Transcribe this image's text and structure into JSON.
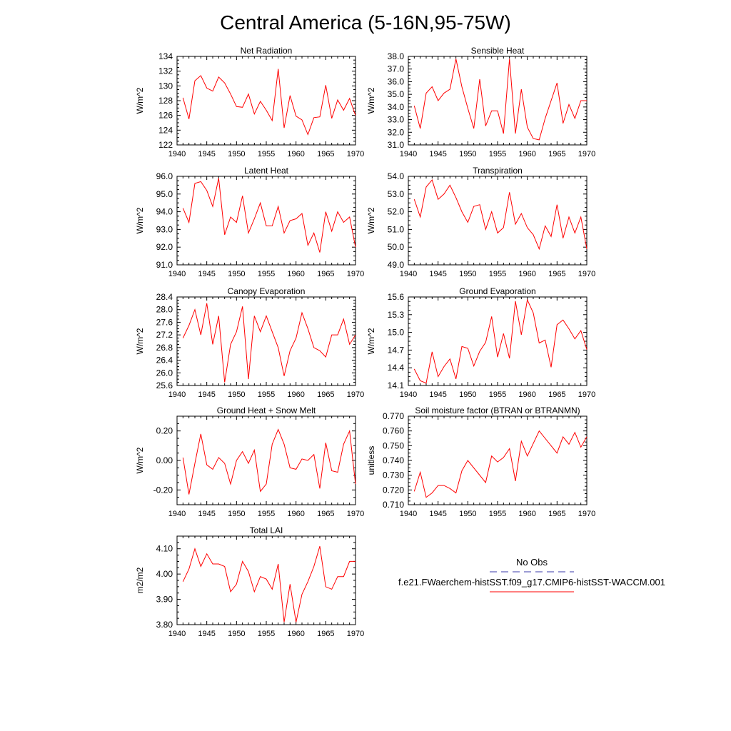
{
  "page_title": "Central America (5-16N,95-75W)",
  "legend": {
    "obs_label": "No Obs",
    "model_label": "f.e21.FWaerchem-histSST.f09_g17.CMIP6-histSST-WACCM.001",
    "obs_color": "#3a3aa8",
    "model_color": "#ff0000"
  },
  "chart_data": [
    {
      "type": "line",
      "title": "Net Radiation",
      "xlabel": "",
      "ylabel": "W/m^2",
      "xlim": [
        1940,
        1970
      ],
      "ylim": [
        122,
        134
      ],
      "xticks": [
        1940,
        1945,
        1950,
        1955,
        1960,
        1965,
        1970
      ],
      "xtick_labels": [
        "1940",
        "1945",
        "1950",
        "1955",
        "1960",
        "1965",
        "1970"
      ],
      "yticks": [
        122,
        124,
        126,
        128,
        130,
        132,
        134
      ],
      "ytick_labels": [
        "122",
        "124",
        "126",
        "128",
        "130",
        "132",
        "134"
      ],
      "series": [
        {
          "color": "#ff0000",
          "x": [
            1941,
            1942,
            1943,
            1944,
            1945,
            1946,
            1947,
            1948,
            1949,
            1950,
            1951,
            1952,
            1953,
            1954,
            1955,
            1956,
            1957,
            1958,
            1959,
            1960,
            1961,
            1962,
            1963,
            1964,
            1965,
            1966,
            1967,
            1968,
            1969,
            1970
          ],
          "y": [
            128.4,
            125.5,
            130.7,
            131.4,
            129.7,
            129.3,
            131.2,
            130.4,
            128.9,
            127.2,
            127.1,
            128.9,
            126.2,
            127.9,
            126.7,
            125.3,
            132.3,
            124.3,
            128.7,
            125.9,
            125.4,
            123.4,
            125.7,
            125.8,
            130.1,
            125.6,
            128.1,
            126.7,
            128.3,
            126.0
          ]
        }
      ]
    },
    {
      "type": "line",
      "title": "Sensible Heat",
      "xlabel": "",
      "ylabel": "W/m^2",
      "xlim": [
        1940,
        1970
      ],
      "ylim": [
        31.0,
        38.0
      ],
      "xticks": [
        1940,
        1945,
        1950,
        1955,
        1960,
        1965,
        1970
      ],
      "xtick_labels": [
        "1940",
        "1945",
        "1950",
        "1955",
        "1960",
        "1965",
        "1970"
      ],
      "yticks": [
        31,
        32,
        33,
        34,
        35,
        36,
        37,
        38
      ],
      "ytick_labels": [
        "31.0",
        "32.0",
        "33.0",
        "34.0",
        "35.0",
        "36.0",
        "37.0",
        "38.0"
      ],
      "series": [
        {
          "color": "#ff0000",
          "x": [
            1941,
            1942,
            1943,
            1944,
            1945,
            1946,
            1947,
            1948,
            1949,
            1950,
            1951,
            1952,
            1953,
            1954,
            1955,
            1956,
            1957,
            1958,
            1959,
            1960,
            1961,
            1962,
            1963,
            1964,
            1965,
            1966,
            1967,
            1968,
            1969,
            1970
          ],
          "y": [
            34.1,
            32.3,
            35.1,
            35.6,
            34.5,
            35.1,
            35.4,
            37.8,
            35.6,
            33.9,
            32.3,
            36.2,
            32.5,
            33.7,
            33.7,
            31.9,
            37.8,
            31.9,
            35.4,
            32.4,
            31.5,
            31.4,
            33.1,
            34.5,
            35.9,
            32.7,
            34.2,
            33.1,
            34.5,
            34.5
          ]
        }
      ]
    },
    {
      "type": "line",
      "title": "Latent Heat",
      "xlabel": "",
      "ylabel": "W/m^2",
      "xlim": [
        1940,
        1970
      ],
      "ylim": [
        91.0,
        96.0
      ],
      "xticks": [
        1940,
        1945,
        1950,
        1955,
        1960,
        1965,
        1970
      ],
      "xtick_labels": [
        "1940",
        "1945",
        "1950",
        "1955",
        "1960",
        "1965",
        "1970"
      ],
      "yticks": [
        91,
        92,
        93,
        94,
        95,
        96
      ],
      "ytick_labels": [
        "91.0",
        "92.0",
        "93.0",
        "94.0",
        "95.0",
        "96.0"
      ],
      "series": [
        {
          "color": "#ff0000",
          "x": [
            1941,
            1942,
            1943,
            1944,
            1945,
            1946,
            1947,
            1948,
            1949,
            1950,
            1951,
            1952,
            1953,
            1954,
            1955,
            1956,
            1957,
            1958,
            1959,
            1960,
            1961,
            1962,
            1963,
            1964,
            1965,
            1966,
            1967,
            1968,
            1969,
            1970
          ],
          "y": [
            94.2,
            93.4,
            95.6,
            95.7,
            95.2,
            94.3,
            95.9,
            92.7,
            93.7,
            93.4,
            94.9,
            92.8,
            93.6,
            94.5,
            93.2,
            93.2,
            94.3,
            92.8,
            93.5,
            93.6,
            93.9,
            92.1,
            92.8,
            91.7,
            94.0,
            92.9,
            94.0,
            93.4,
            93.7,
            92.0
          ]
        }
      ]
    },
    {
      "type": "line",
      "title": "Transpiration",
      "xlabel": "",
      "ylabel": "W/m^2",
      "xlim": [
        1940,
        1970
      ],
      "ylim": [
        49.0,
        54.0
      ],
      "xticks": [
        1940,
        1945,
        1950,
        1955,
        1960,
        1965,
        1970
      ],
      "xtick_labels": [
        "1940",
        "1945",
        "1950",
        "1955",
        "1960",
        "1965",
        "1970"
      ],
      "yticks": [
        49,
        50,
        51,
        52,
        53,
        54
      ],
      "ytick_labels": [
        "49.0",
        "50.0",
        "51.0",
        "52.0",
        "53.0",
        "54.0"
      ],
      "series": [
        {
          "color": "#ff0000",
          "x": [
            1941,
            1942,
            1943,
            1944,
            1945,
            1946,
            1947,
            1948,
            1949,
            1950,
            1951,
            1952,
            1953,
            1954,
            1955,
            1956,
            1957,
            1958,
            1959,
            1960,
            1961,
            1962,
            1963,
            1964,
            1965,
            1966,
            1967,
            1968,
            1969,
            1970
          ],
          "y": [
            52.7,
            51.7,
            53.4,
            53.8,
            52.7,
            53.0,
            53.5,
            52.8,
            52.0,
            51.4,
            52.3,
            52.4,
            51.0,
            52.0,
            50.8,
            51.1,
            53.1,
            51.3,
            51.9,
            51.1,
            50.7,
            49.9,
            51.2,
            50.6,
            52.4,
            50.5,
            51.7,
            50.8,
            51.7,
            49.9
          ]
        }
      ]
    },
    {
      "type": "line",
      "title": "Canopy Evaporation",
      "xlabel": "",
      "ylabel": "W/m^2",
      "xlim": [
        1940,
        1970
      ],
      "ylim": [
        25.6,
        28.4
      ],
      "xticks": [
        1940,
        1945,
        1950,
        1955,
        1960,
        1965,
        1970
      ],
      "xtick_labels": [
        "1940",
        "1945",
        "1950",
        "1955",
        "1960",
        "1965",
        "1970"
      ],
      "yticks": [
        25.6,
        26.0,
        26.4,
        26.8,
        27.2,
        27.6,
        28.0,
        28.4
      ],
      "ytick_labels": [
        "25.6",
        "26.0",
        "26.4",
        "26.8",
        "27.2",
        "27.6",
        "28.0",
        "28.4"
      ],
      "series": [
        {
          "color": "#ff0000",
          "x": [
            1941,
            1942,
            1943,
            1944,
            1945,
            1946,
            1947,
            1948,
            1949,
            1950,
            1951,
            1952,
            1953,
            1954,
            1955,
            1956,
            1957,
            1958,
            1959,
            1960,
            1961,
            1962,
            1963,
            1964,
            1965,
            1966,
            1967,
            1968,
            1969,
            1970
          ],
          "y": [
            27.1,
            27.5,
            28.0,
            27.2,
            28.2,
            26.9,
            27.8,
            25.7,
            26.9,
            27.3,
            28.1,
            25.8,
            27.8,
            27.3,
            27.8,
            27.3,
            26.8,
            25.9,
            26.7,
            27.1,
            27.9,
            27.4,
            26.8,
            26.7,
            26.5,
            27.2,
            27.2,
            27.7,
            26.9,
            27.2
          ]
        }
      ]
    },
    {
      "type": "line",
      "title": "Ground Evaporation",
      "xlabel": "",
      "ylabel": "W/m^2",
      "xlim": [
        1940,
        1970
      ],
      "ylim": [
        14.1,
        15.6
      ],
      "xticks": [
        1940,
        1945,
        1950,
        1955,
        1960,
        1965,
        1970
      ],
      "xtick_labels": [
        "1940",
        "1945",
        "1950",
        "1955",
        "1960",
        "1965",
        "1970"
      ],
      "yticks": [
        14.1,
        14.4,
        14.7,
        15.0,
        15.3,
        15.6
      ],
      "ytick_labels": [
        "14.1",
        "14.4",
        "14.7",
        "15.0",
        "15.3",
        "15.6"
      ],
      "series": [
        {
          "color": "#ff0000",
          "x": [
            1941,
            1942,
            1943,
            1944,
            1945,
            1946,
            1947,
            1948,
            1949,
            1950,
            1951,
            1952,
            1953,
            1954,
            1955,
            1956,
            1957,
            1958,
            1959,
            1960,
            1961,
            1962,
            1963,
            1964,
            1965,
            1966,
            1967,
            1968,
            1969,
            1970
          ],
          "y": [
            14.38,
            14.18,
            14.14,
            14.67,
            14.25,
            14.42,
            14.55,
            14.21,
            14.76,
            14.73,
            14.43,
            14.68,
            14.83,
            15.27,
            14.58,
            14.98,
            14.56,
            15.53,
            14.96,
            15.55,
            15.33,
            14.82,
            14.87,
            14.41,
            15.13,
            15.21,
            15.06,
            14.89,
            15.03,
            14.71
          ]
        }
      ]
    },
    {
      "type": "line",
      "title": "Ground Heat + Snow Melt",
      "xlabel": "",
      "ylabel": "W/m^2",
      "xlim": [
        1940,
        1970
      ],
      "ylim": [
        -0.3,
        0.3
      ],
      "xticks": [
        1940,
        1945,
        1950,
        1955,
        1960,
        1965,
        1970
      ],
      "xtick_labels": [
        "1940",
        "1945",
        "1950",
        "1955",
        "1960",
        "1965",
        "1970"
      ],
      "yticks": [
        -0.2,
        0.0,
        0.2
      ],
      "ytick_labels": [
        "-0.20",
        "0.00",
        "0.20"
      ],
      "series": [
        {
          "color": "#ff0000",
          "x": [
            1941,
            1942,
            1943,
            1944,
            1945,
            1946,
            1947,
            1948,
            1949,
            1950,
            1951,
            1952,
            1953,
            1954,
            1955,
            1956,
            1957,
            1958,
            1959,
            1960,
            1961,
            1962,
            1963,
            1964,
            1965,
            1966,
            1967,
            1968,
            1969,
            1970
          ],
          "y": [
            0.02,
            -0.23,
            -0.02,
            0.18,
            -0.03,
            -0.06,
            0.02,
            -0.02,
            -0.16,
            0.0,
            0.06,
            -0.02,
            0.07,
            -0.21,
            -0.16,
            0.11,
            0.21,
            0.11,
            -0.05,
            -0.06,
            0.01,
            0.0,
            0.04,
            -0.19,
            0.12,
            -0.07,
            -0.08,
            0.11,
            0.2,
            -0.16
          ]
        }
      ]
    },
    {
      "type": "line",
      "title": "Soil moisture factor (BTRAN or BTRANMN)",
      "xlabel": "",
      "ylabel": "unitless",
      "xlim": [
        1940,
        1970
      ],
      "ylim": [
        0.71,
        0.77
      ],
      "xticks": [
        1940,
        1945,
        1950,
        1955,
        1960,
        1965,
        1970
      ],
      "xtick_labels": [
        "1940",
        "1945",
        "1950",
        "1955",
        "1960",
        "1965",
        "1970"
      ],
      "yticks": [
        0.71,
        0.72,
        0.73,
        0.74,
        0.75,
        0.76,
        0.77
      ],
      "ytick_labels": [
        "0.710",
        "0.720",
        "0.730",
        "0.740",
        "0.750",
        "0.760",
        "0.770"
      ],
      "series": [
        {
          "color": "#ff0000",
          "x": [
            1941,
            1942,
            1943,
            1944,
            1945,
            1946,
            1947,
            1948,
            1949,
            1950,
            1953,
            1954,
            1955,
            1956,
            1957,
            1958,
            1959,
            1960,
            1962,
            1965,
            1966,
            1967,
            1968,
            1969,
            1970
          ],
          "y": [
            0.719,
            0.732,
            0.715,
            0.718,
            0.723,
            0.723,
            0.721,
            0.718,
            0.733,
            0.74,
            0.725,
            0.743,
            0.739,
            0.742,
            0.748,
            0.726,
            0.753,
            0.743,
            0.76,
            0.745,
            0.756,
            0.751,
            0.759,
            0.749,
            0.756
          ]
        }
      ]
    },
    {
      "type": "line",
      "title": "Total LAI",
      "xlabel": "",
      "ylabel": "m2/m2",
      "xlim": [
        1940,
        1970
      ],
      "ylim": [
        3.8,
        4.15
      ],
      "xticks": [
        1940,
        1945,
        1950,
        1955,
        1960,
        1965,
        1970
      ],
      "xtick_labels": [
        "1940",
        "1945",
        "1950",
        "1955",
        "1960",
        "1965",
        "1970"
      ],
      "yticks": [
        3.8,
        3.9,
        4.0,
        4.1
      ],
      "ytick_labels": [
        "3.80",
        "3.90",
        "4.00",
        "4.10"
      ],
      "series": [
        {
          "color": "#ff0000",
          "x": [
            1941,
            1942,
            1943,
            1944,
            1945,
            1946,
            1947,
            1948,
            1949,
            1950,
            1951,
            1952,
            1953,
            1954,
            1955,
            1956,
            1957,
            1958,
            1959,
            1960,
            1961,
            1962,
            1963,
            1964,
            1965,
            1966,
            1967,
            1968,
            1969,
            1970
          ],
          "y": [
            3.97,
            4.02,
            4.1,
            4.03,
            4.08,
            4.04,
            4.04,
            4.03,
            3.93,
            3.96,
            4.05,
            4.01,
            3.93,
            3.99,
            3.98,
            3.94,
            4.04,
            3.81,
            3.96,
            3.81,
            3.92,
            3.97,
            4.03,
            4.11,
            3.95,
            3.94,
            3.99,
            3.99,
            4.05,
            4.05
          ]
        }
      ]
    }
  ]
}
